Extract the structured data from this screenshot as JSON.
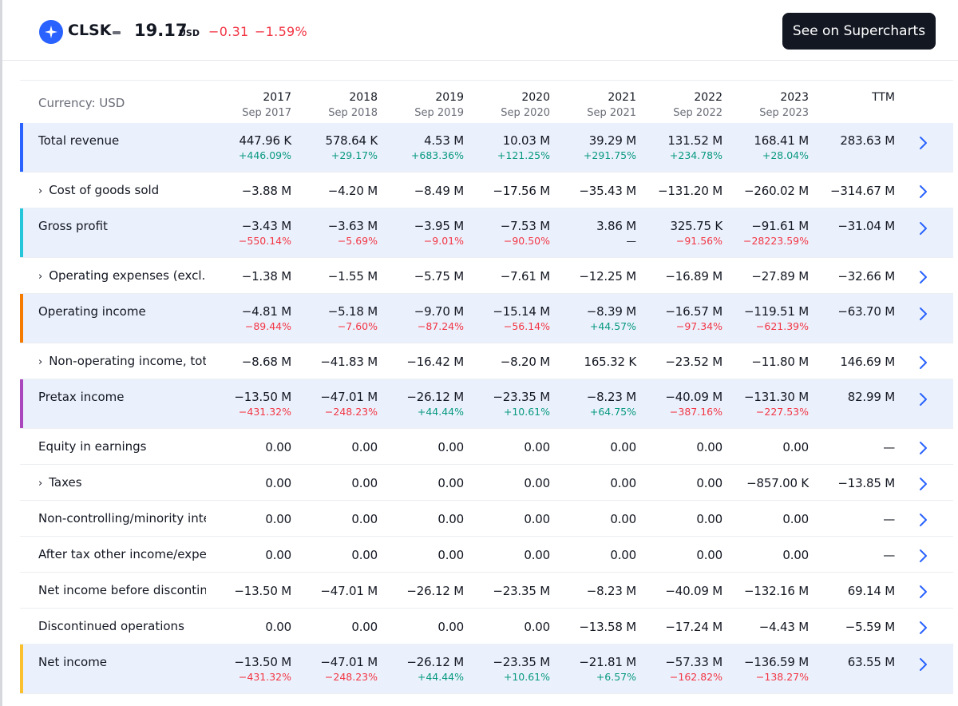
{
  "header": {
    "ticker": "CLSK",
    "price": "19.17",
    "price_unit": "USD",
    "change": "−0.31",
    "change_pct": "−1.59%",
    "button_label": "See on Supercharts"
  },
  "table": {
    "currency_label": "Currency: USD",
    "columns": [
      {
        "year": "2017",
        "period": "Sep 2017"
      },
      {
        "year": "2018",
        "period": "Sep 2018"
      },
      {
        "year": "2019",
        "period": "Sep 2019"
      },
      {
        "year": "2020",
        "period": "Sep 2020"
      },
      {
        "year": "2021",
        "period": "Sep 2021"
      },
      {
        "year": "2022",
        "period": "Sep 2022"
      },
      {
        "year": "2023",
        "period": "Sep 2023"
      },
      {
        "year": "TTM",
        "period": ""
      }
    ],
    "rows": [
      {
        "label": "Total revenue",
        "expandable": false,
        "highlight": true,
        "accent": "#2962ff",
        "values": [
          "447.96 K",
          "578.64 K",
          "4.53 M",
          "10.03 M",
          "39.29 M",
          "131.52 M",
          "168.41 M",
          "283.63 M"
        ],
        "changes": [
          "+446.09%",
          "+29.17%",
          "+683.36%",
          "+121.25%",
          "+291.75%",
          "+234.78%",
          "+28.04%",
          ""
        ]
      },
      {
        "label": "Cost of goods sold",
        "expandable": true,
        "highlight": false,
        "accent": "",
        "values": [
          "−3.88 M",
          "−4.20 M",
          "−8.49 M",
          "−17.56 M",
          "−35.43 M",
          "−131.20 M",
          "−260.02 M",
          "−314.67 M"
        ]
      },
      {
        "label": "Gross profit",
        "expandable": false,
        "highlight": true,
        "accent": "#26c6da",
        "values": [
          "−3.43 M",
          "−3.63 M",
          "−3.95 M",
          "−7.53 M",
          "3.86 M",
          "325.75 K",
          "−91.61 M",
          "−31.04 M"
        ],
        "changes": [
          "−550.14%",
          "−5.69%",
          "−9.01%",
          "−90.50%",
          "—",
          "−91.56%",
          "−28223.59%",
          ""
        ]
      },
      {
        "label": "Operating expenses (excl. cost of goods sold)",
        "expandable": true,
        "highlight": false,
        "accent": "",
        "values": [
          "−1.38 M",
          "−1.55 M",
          "−5.75 M",
          "−7.61 M",
          "−12.25 M",
          "−16.89 M",
          "−27.89 M",
          "−32.66 M"
        ]
      },
      {
        "label": "Operating income",
        "expandable": false,
        "highlight": true,
        "accent": "#f57c00",
        "values": [
          "−4.81 M",
          "−5.18 M",
          "−9.70 M",
          "−15.14 M",
          "−8.39 M",
          "−16.57 M",
          "−119.51 M",
          "−63.70 M"
        ],
        "changes": [
          "−89.44%",
          "−7.60%",
          "−87.24%",
          "−56.14%",
          "+44.57%",
          "−97.34%",
          "−621.39%",
          ""
        ]
      },
      {
        "label": "Non-operating income, total",
        "expandable": true,
        "highlight": false,
        "accent": "",
        "values": [
          "−8.68 M",
          "−41.83 M",
          "−16.42 M",
          "−8.20 M",
          "165.32 K",
          "−23.52 M",
          "−11.80 M",
          "146.69 M"
        ]
      },
      {
        "label": "Pretax income",
        "expandable": false,
        "highlight": true,
        "accent": "#ab47bc",
        "values": [
          "−13.50 M",
          "−47.01 M",
          "−26.12 M",
          "−23.35 M",
          "−8.23 M",
          "−40.09 M",
          "−131.30 M",
          "82.99 M"
        ],
        "changes": [
          "−431.32%",
          "−248.23%",
          "+44.44%",
          "+10.61%",
          "+64.75%",
          "−387.16%",
          "−227.53%",
          ""
        ]
      },
      {
        "label": "Equity in earnings",
        "expandable": false,
        "highlight": false,
        "accent": "",
        "values": [
          "0.00",
          "0.00",
          "0.00",
          "0.00",
          "0.00",
          "0.00",
          "0.00",
          "—"
        ]
      },
      {
        "label": "Taxes",
        "expandable": true,
        "highlight": false,
        "accent": "",
        "values": [
          "0.00",
          "0.00",
          "0.00",
          "0.00",
          "0.00",
          "0.00",
          "−857.00 K",
          "−13.85 M"
        ]
      },
      {
        "label": "Non-controlling/minority interest",
        "expandable": false,
        "highlight": false,
        "accent": "",
        "values": [
          "0.00",
          "0.00",
          "0.00",
          "0.00",
          "0.00",
          "0.00",
          "0.00",
          "—"
        ]
      },
      {
        "label": "After tax other income/expense",
        "expandable": false,
        "highlight": false,
        "accent": "",
        "values": [
          "0.00",
          "0.00",
          "0.00",
          "0.00",
          "0.00",
          "0.00",
          "0.00",
          "—"
        ]
      },
      {
        "label": "Net income before discontinued operations",
        "expandable": false,
        "highlight": false,
        "accent": "",
        "values": [
          "−13.50 M",
          "−47.01 M",
          "−26.12 M",
          "−23.35 M",
          "−8.23 M",
          "−40.09 M",
          "−132.16 M",
          "69.14 M"
        ]
      },
      {
        "label": "Discontinued operations",
        "expandable": false,
        "highlight": false,
        "accent": "",
        "values": [
          "0.00",
          "0.00",
          "0.00",
          "0.00",
          "−13.58 M",
          "−17.24 M",
          "−4.43 M",
          "−5.59 M"
        ]
      },
      {
        "label": "Net income",
        "expandable": false,
        "highlight": true,
        "accent": "#fbc02d",
        "values": [
          "−13.50 M",
          "−47.01 M",
          "−26.12 M",
          "−23.35 M",
          "−21.81 M",
          "−57.33 M",
          "−136.59 M",
          "63.55 M"
        ],
        "changes": [
          "−431.32%",
          "−248.23%",
          "+44.44%",
          "+10.61%",
          "+6.57%",
          "−162.82%",
          "−138.27%",
          ""
        ]
      }
    ]
  }
}
